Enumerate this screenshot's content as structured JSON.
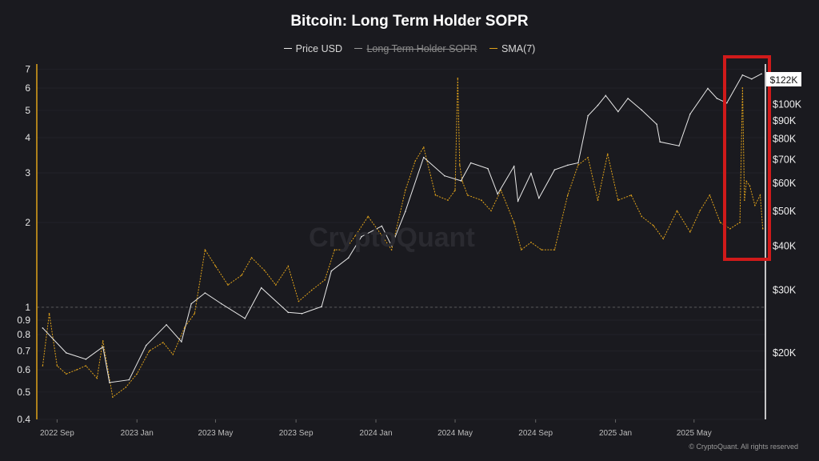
{
  "chart_data": {
    "type": "line",
    "title": "Bitcoin: Long Term Holder SOPR",
    "legend": [
      {
        "name": "Price USD",
        "color": "#e8e8e8",
        "active": true
      },
      {
        "name": "Long Term Holder SOPR",
        "color": "#9a9a9a",
        "active": false
      },
      {
        "name": "SMA(7)",
        "color": "#e0a21a",
        "active": true
      }
    ],
    "x_ticks": [
      "2022 Sep",
      "2023 Jan",
      "2023 May",
      "2023 Sep",
      "2024 Jan",
      "2024 May",
      "2024 Sep",
      "2025 Jan",
      "2025 May"
    ],
    "left_axis": {
      "scale": "log",
      "ticks": [
        "7",
        "6",
        "5",
        "4",
        "3",
        "2",
        "1",
        "0.9",
        "0.8",
        "0.7",
        "0.6",
        "0.5",
        "0.4"
      ],
      "range": [
        0.4,
        7.3
      ],
      "reference_line": 1
    },
    "right_axis": {
      "scale": "log",
      "ticks": [
        "$100K",
        "$90K",
        "$80K",
        "$70K",
        "$60K",
        "$50K",
        "$40K",
        "$30K",
        "$20K"
      ],
      "current_label": "$122K",
      "range": [
        13000,
        130000
      ]
    },
    "series": [
      {
        "name": "Price USD",
        "axis": "right",
        "x": [
          "2022-08-10",
          "2022-09-15",
          "2022-10-15",
          "2022-11-10",
          "2022-11-20",
          "2022-12-20",
          "2023-01-15",
          "2023-02-15",
          "2023-03-10",
          "2023-03-25",
          "2023-04-15",
          "2023-05-10",
          "2023-06-15",
          "2023-07-10",
          "2023-08-20",
          "2023-09-10",
          "2023-10-10",
          "2023-10-25",
          "2023-11-20",
          "2023-12-10",
          "2024-01-10",
          "2024-01-25",
          "2024-02-15",
          "2024-03-14",
          "2024-04-15",
          "2024-05-10",
          "2024-05-25",
          "2024-06-20",
          "2024-07-05",
          "2024-07-30",
          "2024-08-05",
          "2024-08-25",
          "2024-09-06",
          "2024-09-30",
          "2024-10-20",
          "2024-11-05",
          "2024-11-20",
          "2024-12-05",
          "2024-12-17",
          "2025-01-05",
          "2025-01-20",
          "2025-02-10",
          "2025-03-05",
          "2025-03-10",
          "2025-04-08",
          "2025-04-25",
          "2025-05-22",
          "2025-06-05",
          "2025-06-20",
          "2025-07-14",
          "2025-07-28",
          "2025-08-12"
        ],
        "values": [
          23500,
          20000,
          19200,
          20800,
          16500,
          16800,
          21000,
          24000,
          21500,
          27500,
          29500,
          27500,
          25000,
          30500,
          26000,
          25800,
          27000,
          34000,
          37000,
          42500,
          45500,
          40000,
          50000,
          71000,
          63000,
          61000,
          68500,
          66000,
          56000,
          67000,
          53500,
          64000,
          54500,
          65500,
          67500,
          68500,
          93000,
          99500,
          106000,
          95500,
          104000,
          96500,
          88000,
          78500,
          76500,
          94000,
          111000,
          104000,
          101000,
          121000,
          118000,
          122000
        ]
      },
      {
        "name": "SMA(7)",
        "axis": "left",
        "x": [
          "2022-08-10",
          "2022-08-20",
          "2022-09-01",
          "2022-09-15",
          "2022-10-01",
          "2022-10-15",
          "2022-11-01",
          "2022-11-10",
          "2022-11-25",
          "2022-12-15",
          "2023-01-01",
          "2023-01-20",
          "2023-02-10",
          "2023-02-25",
          "2023-03-15",
          "2023-03-30",
          "2023-04-15",
          "2023-05-01",
          "2023-05-20",
          "2023-06-10",
          "2023-06-25",
          "2023-07-15",
          "2023-08-01",
          "2023-08-20",
          "2023-09-05",
          "2023-09-25",
          "2023-10-15",
          "2023-10-30",
          "2023-11-15",
          "2023-12-01",
          "2023-12-20",
          "2024-01-10",
          "2024-01-25",
          "2024-02-15",
          "2024-03-01",
          "2024-03-14",
          "2024-04-01",
          "2024-04-20",
          "2024-05-01",
          "2024-05-05",
          "2024-05-08",
          "2024-05-12",
          "2024-05-20",
          "2024-06-10",
          "2024-06-25",
          "2024-07-10",
          "2024-07-30",
          "2024-08-10",
          "2024-08-25",
          "2024-09-10",
          "2024-09-30",
          "2024-10-20",
          "2024-11-05",
          "2024-11-20",
          "2024-12-05",
          "2024-12-20",
          "2025-01-05",
          "2025-01-25",
          "2025-02-10",
          "2025-02-28",
          "2025-03-15",
          "2025-04-05",
          "2025-04-25",
          "2025-05-10",
          "2025-05-25",
          "2025-06-10",
          "2025-06-25",
          "2025-07-10",
          "2025-07-14",
          "2025-07-17",
          "2025-07-20",
          "2025-07-25",
          "2025-08-02",
          "2025-08-10",
          "2025-08-14"
        ],
        "values": [
          0.62,
          0.95,
          0.62,
          0.58,
          0.6,
          0.62,
          0.56,
          0.76,
          0.48,
          0.52,
          0.58,
          0.7,
          0.75,
          0.68,
          0.85,
          0.95,
          1.6,
          1.4,
          1.2,
          1.3,
          1.5,
          1.35,
          1.2,
          1.4,
          1.05,
          1.15,
          1.25,
          1.6,
          1.6,
          1.8,
          2.1,
          1.8,
          1.6,
          2.6,
          3.3,
          3.7,
          2.5,
          2.4,
          2.6,
          6.5,
          3.2,
          2.8,
          2.5,
          2.4,
          2.2,
          2.6,
          2.0,
          1.6,
          1.7,
          1.6,
          1.6,
          2.5,
          3.2,
          3.4,
          2.4,
          3.5,
          2.4,
          2.5,
          2.1,
          1.95,
          1.75,
          2.2,
          1.85,
          2.2,
          2.5,
          2.0,
          1.9,
          2.0,
          6.0,
          2.4,
          2.8,
          2.7,
          2.3,
          2.5,
          1.9
        ]
      }
    ],
    "annotation": "highlight box around 2025 Jul–Aug spike"
  },
  "watermark": "CryptoQuant",
  "credit": "© CryptoQuant. All rights reserved"
}
